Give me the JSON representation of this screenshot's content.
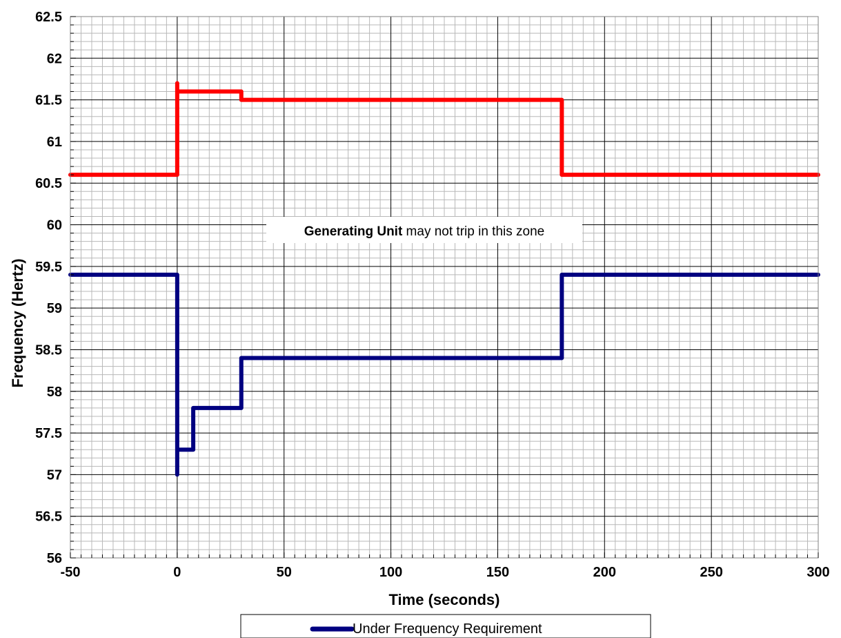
{
  "chart_data": {
    "type": "line",
    "xlabel": "Time (seconds)",
    "ylabel": "Frequency (Hertz)",
    "xlim": [
      -50,
      300
    ],
    "ylim": [
      56,
      62.5
    ],
    "x_ticks": [
      "-50",
      "0",
      "50",
      "100",
      "150",
      "200",
      "250",
      "300"
    ],
    "y_ticks": [
      "56",
      "56.5",
      "57",
      "57.5",
      "58",
      "58.5",
      "59",
      "59.5",
      "60",
      "60.5",
      "61",
      "61.5",
      "62",
      "62.5"
    ],
    "grid": true,
    "legend_position": "bottom",
    "annotation": {
      "bold": "Generating Unit",
      "rest": " may not trip in this zone",
      "x": 100,
      "y": 60
    },
    "series": [
      {
        "color": "#ff0000",
        "x": [
          -50,
          0,
          0,
          0,
          30,
          30,
          180,
          180,
          300
        ],
        "y": [
          60.6,
          60.6,
          61.7,
          61.6,
          61.6,
          61.5,
          61.5,
          60.6,
          60.6
        ]
      },
      {
        "name": "Under Frequency Requirement",
        "color": "#000080",
        "x": [
          -50,
          0,
          0,
          0,
          7.5,
          7.5,
          30,
          30,
          180,
          180,
          300
        ],
        "y": [
          59.4,
          59.4,
          57.0,
          57.3,
          57.3,
          57.8,
          57.8,
          58.4,
          58.4,
          59.4,
          59.4
        ]
      }
    ]
  }
}
